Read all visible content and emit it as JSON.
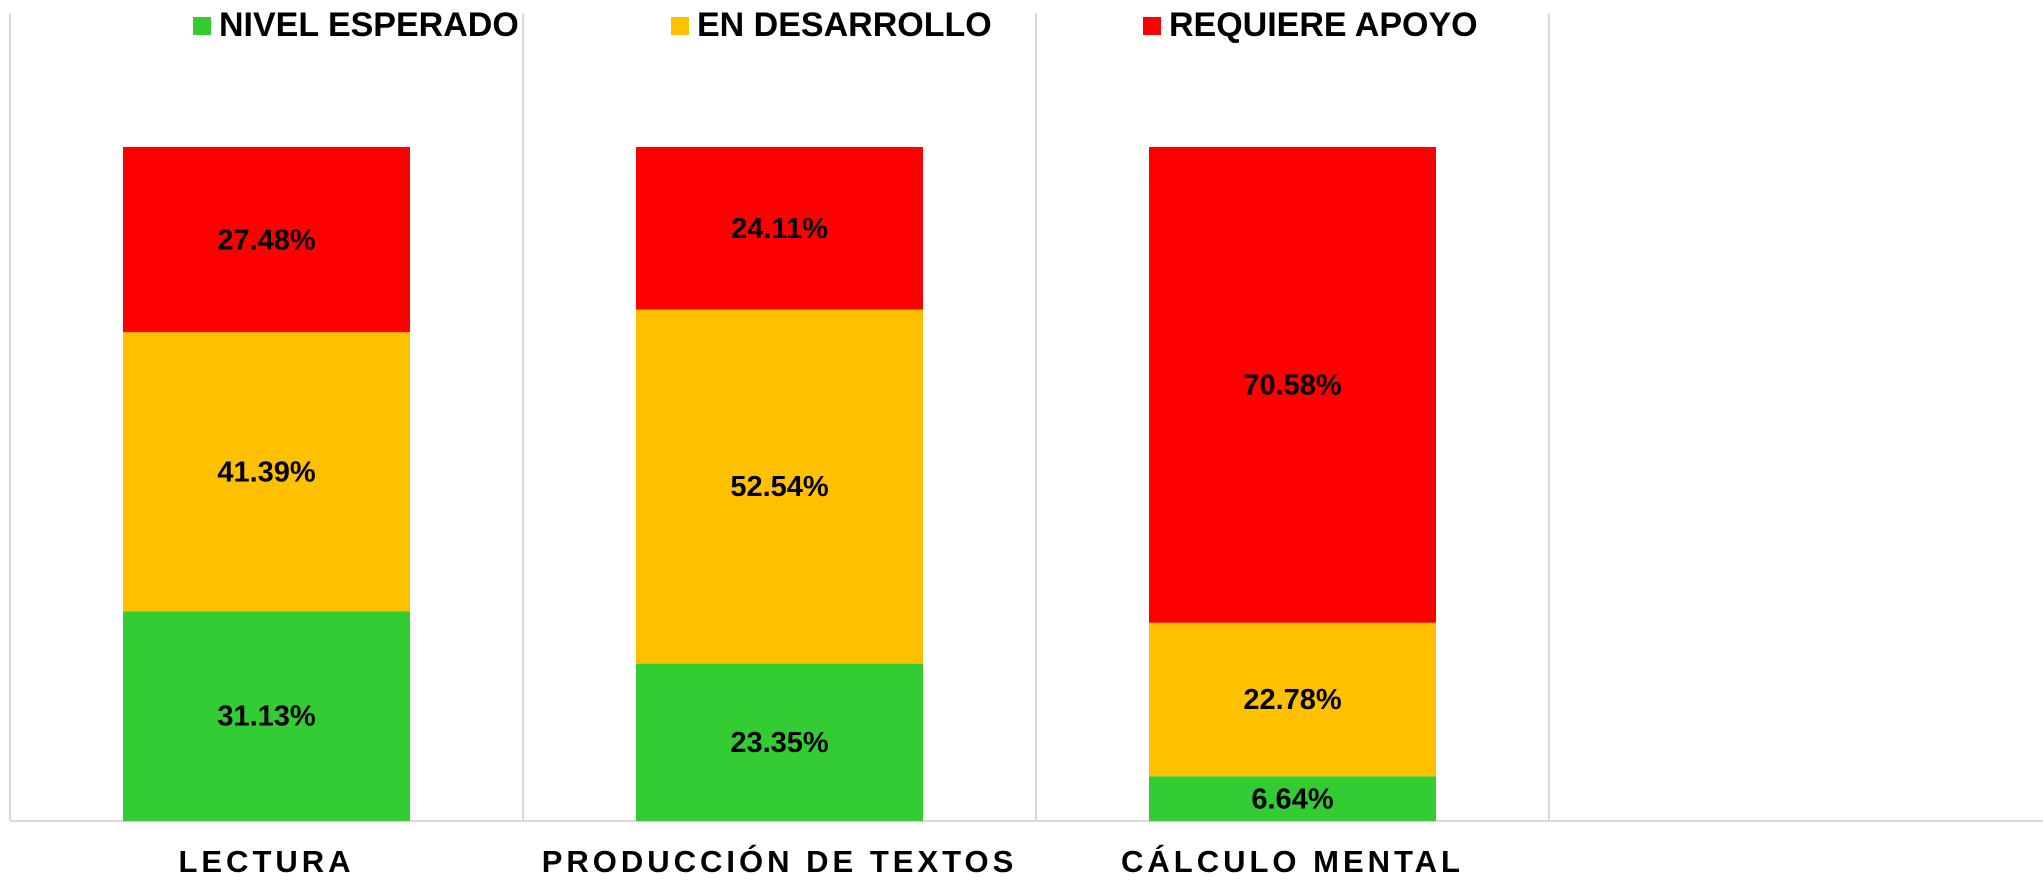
{
  "chart_data": {
    "type": "stacked_bar",
    "categories": [
      "LECTURA",
      "PRODUCCIÓN DE TEXTOS",
      "CÁLCULO MENTAL",
      null
    ],
    "series": [
      {
        "name": "NIVEL ESPERADO",
        "color": "#33cc33",
        "values": [
          31.13,
          23.35,
          6.64,
          null
        ],
        "value_labels": [
          "31.13%",
          "23.35%",
          "6.64%",
          null
        ]
      },
      {
        "name": "EN DESARROLLO",
        "color": "#ffc000",
        "values": [
          41.39,
          52.54,
          22.78,
          null
        ],
        "value_labels": [
          "41.39%",
          "52.54%",
          "22.78%",
          null
        ]
      },
      {
        "name": "REQUIERE APOYO",
        "color": "#ff0000",
        "values": [
          27.48,
          24.11,
          70.58,
          null
        ],
        "value_labels": [
          "27.48%",
          "24.11%",
          "70.58%",
          null
        ]
      }
    ],
    "ylim": [
      0,
      100
    ],
    "legend": "top"
  }
}
